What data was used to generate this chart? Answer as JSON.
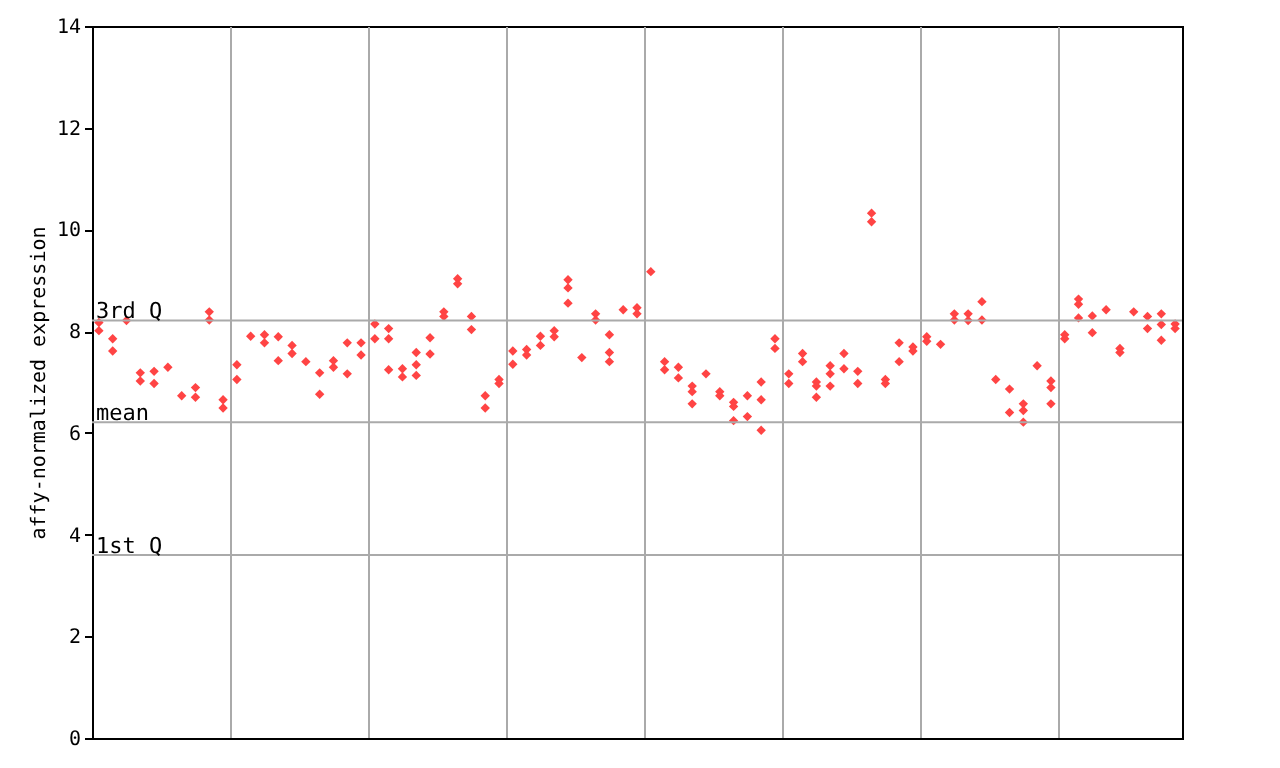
{
  "chart_data": {
    "type": "scatter",
    "ylabel": "affy-normalized expression",
    "categories": [
      null,
      null,
      null,
      null,
      null,
      null,
      null,
      null,
      null,
      null,
      null,
      null,
      null,
      null,
      null,
      null,
      null,
      null,
      null,
      null,
      null,
      null,
      null,
      null,
      null,
      null,
      null,
      null,
      null,
      null,
      null,
      null,
      null,
      null,
      null,
      null,
      null,
      null,
      null,
      null,
      null,
      null,
      null,
      null,
      null,
      null,
      null,
      null,
      null,
      null,
      null,
      null,
      null,
      null,
      null,
      null,
      null,
      null,
      null,
      null,
      null,
      null,
      null,
      null,
      null,
      null,
      null,
      null,
      null,
      null,
      null,
      null,
      null,
      null,
      null,
      null,
      null,
      null,
      null
    ],
    "series": [
      {
        "color": "#ff4444",
        "values": [
          8.17,
          7.85,
          8.21,
          7.18,
          7.21,
          7.29,
          6.73,
          6.89,
          8.38,
          6.65,
          7.34,
          7.9,
          7.93,
          7.89,
          7.72,
          7.4,
          7.18,
          7.29,
          7.77,
          7.77,
          7.85,
          8.05,
          7.26,
          7.58,
          7.87,
          8.38,
          9.03,
          8.29,
          6.73,
          7.05,
          7.61,
          7.64,
          7.9,
          8.01,
          9.01,
          7.48,
          8.34,
          7.93,
          8.42,
          8.46,
          9.17,
          7.4,
          7.29,
          6.92,
          7.16,
          6.81,
          6.6,
          6.73,
          7.0,
          7.85,
          7.16,
          7.56,
          7.0,
          7.32,
          7.56,
          7.21,
          10.32,
          7.05,
          7.77,
          7.69,
          7.89,
          7.74,
          8.34,
          8.34,
          8.58,
          7.05,
          6.86,
          6.57,
          7.32,
          7.02,
          7.93,
          8.63,
          8.3,
          8.42,
          7.66,
          8.38,
          8.29,
          8.34,
          8.14
        ]
      },
      {
        "color": "#ff4444",
        "values": [
          8.01,
          7.61,
          null,
          7.02,
          6.97,
          null,
          null,
          6.7,
          8.22,
          6.49,
          7.05,
          null,
          7.77,
          7.42,
          7.56,
          null,
          6.76,
          7.42,
          7.16,
          7.53,
          8.14,
          7.85,
          7.1,
          7.34,
          7.55,
          8.29,
          8.93,
          8.03,
          6.49,
          6.97,
          7.35,
          7.53,
          7.72,
          7.89,
          8.85,
          null,
          8.22,
          7.58,
          null,
          8.34,
          null,
          7.24,
          7.08,
          6.81,
          null,
          6.73,
          6.52,
          6.32,
          6.65,
          7.66,
          6.97,
          7.4,
          6.92,
          7.16,
          7.26,
          6.97,
          10.15,
          6.97,
          7.4,
          7.61,
          7.8,
          null,
          8.22,
          8.21,
          8.22,
          null,
          6.4,
          6.44,
          null,
          6.89,
          7.85,
          8.53,
          7.97,
          null,
          7.58,
          null,
          8.05,
          7.82,
          8.05
        ]
      },
      {
        "color": "#ff4444",
        "values": [
          null,
          null,
          null,
          null,
          null,
          null,
          null,
          null,
          null,
          null,
          null,
          null,
          null,
          null,
          null,
          null,
          null,
          null,
          null,
          null,
          null,
          7.24,
          null,
          7.13,
          null,
          null,
          null,
          null,
          null,
          null,
          null,
          null,
          null,
          null,
          8.55,
          null,
          null,
          7.4,
          null,
          null,
          null,
          null,
          null,
          6.57,
          null,
          null,
          6.24,
          null,
          6.05,
          null,
          null,
          null,
          6.7,
          6.92,
          null,
          null,
          null,
          null,
          null,
          null,
          null,
          null,
          null,
          null,
          null,
          null,
          null,
          6.21,
          null,
          6.57,
          null,
          8.26,
          null,
          null,
          null,
          null,
          null,
          8.13,
          null
        ]
      }
    ],
    "ylim": [
      0,
      14
    ],
    "yticks": [
      0,
      2,
      4,
      6,
      8,
      10,
      12,
      14
    ],
    "ref_lines": [
      {
        "axis": "y",
        "value": 8.21,
        "label": "3rd Q"
      },
      {
        "axis": "y",
        "value": 6.21,
        "label": "mean"
      },
      {
        "axis": "y",
        "value": 3.6,
        "label": "1st Q"
      }
    ],
    "grid": "x",
    "tick_labels": "y",
    "marker": "diamond"
  }
}
